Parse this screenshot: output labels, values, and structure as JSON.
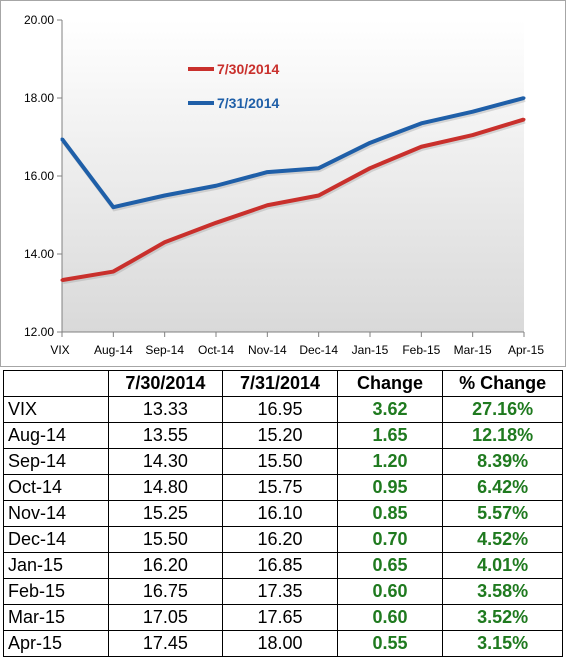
{
  "chart_data": {
    "type": "line",
    "categories": [
      "VIX",
      "Aug-14",
      "Sep-14",
      "Oct-14",
      "Nov-14",
      "Dec-14",
      "Jan-15",
      "Feb-15",
      "Mar-15",
      "Apr-15"
    ],
    "series": [
      {
        "name": "7/30/2014",
        "color": "#c9302c",
        "values": [
          13.33,
          13.55,
          14.3,
          14.8,
          15.25,
          15.5,
          16.2,
          16.75,
          17.05,
          17.45
        ]
      },
      {
        "name": "7/31/2014",
        "color": "#1f5fa8",
        "values": [
          16.95,
          15.2,
          15.5,
          15.75,
          16.1,
          16.2,
          16.85,
          17.35,
          17.65,
          18.0
        ]
      }
    ],
    "yticks": [
      "12.00",
      "14.00",
      "16.00",
      "18.00",
      "20.00"
    ],
    "ylim": [
      12,
      20
    ],
    "grid": false,
    "legend_position": "top-left",
    "plot_background": "#e8e8e8"
  },
  "table": {
    "headers": [
      "",
      "7/30/2014",
      "7/31/2014",
      "Change",
      "% Change"
    ],
    "rows": [
      [
        "VIX",
        "13.33",
        "16.95",
        "3.62",
        "27.16%"
      ],
      [
        "Aug-14",
        "13.55",
        "15.20",
        "1.65",
        "12.18%"
      ],
      [
        "Sep-14",
        "14.30",
        "15.50",
        "1.20",
        "8.39%"
      ],
      [
        "Oct-14",
        "14.80",
        "15.75",
        "0.95",
        "6.42%"
      ],
      [
        "Nov-14",
        "15.25",
        "16.10",
        "0.85",
        "5.57%"
      ],
      [
        "Dec-14",
        "15.50",
        "16.20",
        "0.70",
        "4.52%"
      ],
      [
        "Jan-15",
        "16.20",
        "16.85",
        "0.65",
        "4.01%"
      ],
      [
        "Feb-15",
        "16.75",
        "17.35",
        "0.60",
        "3.58%"
      ],
      [
        "Mar-15",
        "17.05",
        "17.65",
        "0.60",
        "3.52%"
      ],
      [
        "Apr-15",
        "17.45",
        "18.00",
        "0.55",
        "3.15%"
      ]
    ],
    "change_color": "#1f7a1f"
  }
}
